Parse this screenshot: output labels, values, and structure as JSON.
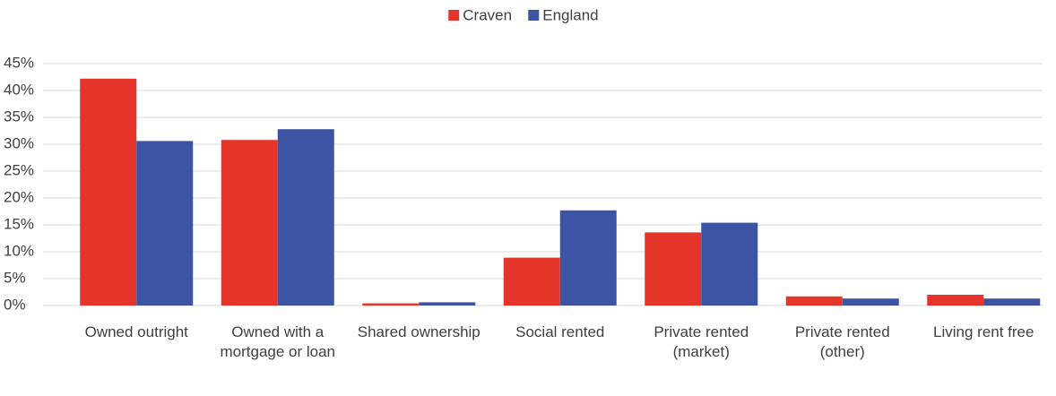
{
  "chart_data": {
    "type": "bar",
    "categories": [
      "Owned outright",
      "Owned with a mortgage or loan",
      "Shared ownership",
      "Social rented",
      "Private rented (market)",
      "Private rented (other)",
      "Living rent free"
    ],
    "series": [
      {
        "name": "Craven",
        "color": "#e5352b",
        "values": [
          42.2,
          30.8,
          0.4,
          8.9,
          13.6,
          1.7,
          2.0
        ]
      },
      {
        "name": "England",
        "color": "#3d54a4",
        "values": [
          30.6,
          32.8,
          0.6,
          17.7,
          15.4,
          1.3,
          1.3
        ]
      }
    ],
    "ylim": [
      0,
      45
    ],
    "yticks": [
      {
        "value": 0,
        "label": "0%"
      },
      {
        "value": 5,
        "label": "5%"
      },
      {
        "value": 10,
        "label": "10%"
      },
      {
        "value": 15,
        "label": "15%"
      },
      {
        "value": 20,
        "label": "20%"
      },
      {
        "value": 25,
        "label": "25%"
      },
      {
        "value": 30,
        "label": "30%"
      },
      {
        "value": 35,
        "label": "35%"
      },
      {
        "value": 40,
        "label": "40%"
      },
      {
        "value": 45,
        "label": "45%"
      }
    ],
    "grid": true,
    "legend": "top"
  }
}
